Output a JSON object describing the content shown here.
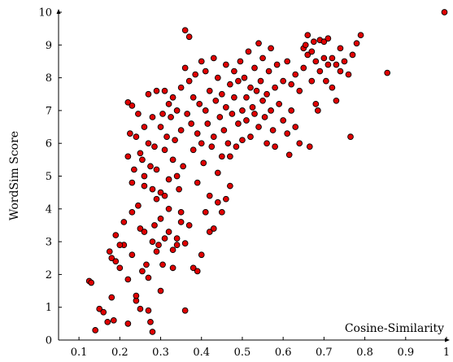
{
  "chart_data": {
    "type": "scatter",
    "title": "",
    "xlabel": "Cosine-Similarity",
    "ylabel": "WordSim Score",
    "xlim": [
      0.05,
      1.0
    ],
    "ylim": [
      0,
      10
    ],
    "grid": false,
    "legend": "none",
    "x_ticks": [
      "0.1",
      "0.2",
      "0.3",
      "0.4",
      "0.5",
      "0.6",
      "0.7",
      "0.8",
      "0.9",
      "1"
    ],
    "y_ticks": [
      "0",
      "1",
      "2",
      "3",
      "4",
      "5",
      "6",
      "7",
      "8",
      "9",
      "10"
    ],
    "marker_color": "#e00000",
    "marker_edge_color": "#000000",
    "series": [
      {
        "points": [
          [
            0.125,
            1.8
          ],
          [
            0.13,
            1.75
          ],
          [
            0.14,
            0.3
          ],
          [
            0.15,
            0.95
          ],
          [
            0.16,
            0.85
          ],
          [
            0.17,
            0.55
          ],
          [
            0.175,
            2.7
          ],
          [
            0.18,
            1.3
          ],
          [
            0.18,
            2.5
          ],
          [
            0.185,
            0.6
          ],
          [
            0.19,
            3.2
          ],
          [
            0.19,
            2.4
          ],
          [
            0.2,
            2.2
          ],
          [
            0.21,
            2.9
          ],
          [
            0.2,
            2.9
          ],
          [
            0.21,
            3.6
          ],
          [
            0.22,
            0.5
          ],
          [
            0.22,
            1.85
          ],
          [
            0.23,
            3.9
          ],
          [
            0.23,
            2.6
          ],
          [
            0.24,
            1.2
          ],
          [
            0.24,
            1.35
          ],
          [
            0.25,
            0.95
          ],
          [
            0.245,
            4.1
          ],
          [
            0.25,
            3.4
          ],
          [
            0.255,
            2.1
          ],
          [
            0.26,
            4.7
          ],
          [
            0.26,
            3.3
          ],
          [
            0.265,
            2.3
          ],
          [
            0.27,
            1.9
          ],
          [
            0.27,
            0.9
          ],
          [
            0.275,
            0.55
          ],
          [
            0.28,
            0.25
          ],
          [
            0.28,
            3.0
          ],
          [
            0.285,
            3.5
          ],
          [
            0.29,
            2.7
          ],
          [
            0.29,
            4.3
          ],
          [
            0.295,
            2.9
          ],
          [
            0.3,
            1.5
          ],
          [
            0.3,
            3.7
          ],
          [
            0.305,
            2.3
          ],
          [
            0.31,
            4.4
          ],
          [
            0.31,
            3.1
          ],
          [
            0.32,
            3.3
          ],
          [
            0.32,
            4.0
          ],
          [
            0.33,
            2.2
          ],
          [
            0.33,
            2.75
          ],
          [
            0.34,
            3.1
          ],
          [
            0.34,
            2.9
          ],
          [
            0.35,
            3.6
          ],
          [
            0.35,
            3.9
          ],
          [
            0.36,
            0.9
          ],
          [
            0.36,
            2.95
          ],
          [
            0.37,
            3.5
          ],
          [
            0.38,
            2.2
          ],
          [
            0.39,
            2.1
          ],
          [
            0.4,
            2.6
          ],
          [
            0.41,
            3.9
          ],
          [
            0.42,
            3.3
          ],
          [
            0.43,
            3.4
          ],
          [
            0.44,
            4.2
          ],
          [
            0.45,
            3.9
          ],
          [
            0.46,
            4.3
          ],
          [
            0.47,
            4.7
          ],
          [
            0.22,
            7.25
          ],
          [
            0.23,
            7.15
          ],
          [
            0.22,
            5.6
          ],
          [
            0.225,
            6.3
          ],
          [
            0.23,
            4.8
          ],
          [
            0.235,
            5.2
          ],
          [
            0.24,
            6.2
          ],
          [
            0.245,
            6.9
          ],
          [
            0.25,
            5.7
          ],
          [
            0.255,
            5.5
          ],
          [
            0.26,
            6.5
          ],
          [
            0.26,
            5.0
          ],
          [
            0.27,
            6.0
          ],
          [
            0.27,
            7.5
          ],
          [
            0.275,
            5.3
          ],
          [
            0.28,
            6.8
          ],
          [
            0.28,
            4.6
          ],
          [
            0.285,
            5.9
          ],
          [
            0.29,
            7.6
          ],
          [
            0.29,
            5.2
          ],
          [
            0.3,
            6.5
          ],
          [
            0.3,
            4.5
          ],
          [
            0.305,
            6.9
          ],
          [
            0.31,
            7.6
          ],
          [
            0.31,
            5.8
          ],
          [
            0.315,
            6.2
          ],
          [
            0.32,
            7.2
          ],
          [
            0.32,
            4.9
          ],
          [
            0.325,
            6.8
          ],
          [
            0.33,
            7.4
          ],
          [
            0.33,
            5.5
          ],
          [
            0.335,
            6.1
          ],
          [
            0.34,
            7.0
          ],
          [
            0.34,
            5.0
          ],
          [
            0.345,
            4.6
          ],
          [
            0.35,
            6.4
          ],
          [
            0.35,
            7.7
          ],
          [
            0.355,
            5.3
          ],
          [
            0.36,
            8.3
          ],
          [
            0.36,
            9.45
          ],
          [
            0.365,
            6.9
          ],
          [
            0.37,
            9.25
          ],
          [
            0.37,
            7.9
          ],
          [
            0.375,
            6.6
          ],
          [
            0.38,
            7.4
          ],
          [
            0.38,
            5.8
          ],
          [
            0.385,
            8.1
          ],
          [
            0.39,
            6.3
          ],
          [
            0.39,
            4.8
          ],
          [
            0.395,
            7.2
          ],
          [
            0.4,
            6.0
          ],
          [
            0.4,
            8.5
          ],
          [
            0.405,
            5.4
          ],
          [
            0.41,
            7.0
          ],
          [
            0.41,
            8.2
          ],
          [
            0.415,
            6.6
          ],
          [
            0.42,
            4.4
          ],
          [
            0.42,
            7.6
          ],
          [
            0.425,
            5.9
          ],
          [
            0.43,
            8.6
          ],
          [
            0.43,
            6.2
          ],
          [
            0.435,
            7.3
          ],
          [
            0.44,
            5.1
          ],
          [
            0.44,
            8.0
          ],
          [
            0.445,
            6.8
          ],
          [
            0.45,
            7.5
          ],
          [
            0.45,
            5.6
          ],
          [
            0.455,
            6.4
          ],
          [
            0.46,
            8.4
          ],
          [
            0.46,
            7.1
          ],
          [
            0.465,
            6.0
          ],
          [
            0.47,
            7.8
          ],
          [
            0.47,
            5.6
          ],
          [
            0.475,
            6.9
          ],
          [
            0.48,
            8.2
          ],
          [
            0.48,
            7.4
          ],
          [
            0.485,
            5.9
          ],
          [
            0.49,
            6.6
          ],
          [
            0.49,
            7.9
          ],
          [
            0.495,
            8.5
          ],
          [
            0.5,
            7.0
          ],
          [
            0.5,
            6.1
          ],
          [
            0.505,
            8.0
          ],
          [
            0.51,
            7.4
          ],
          [
            0.51,
            6.7
          ],
          [
            0.515,
            8.8
          ],
          [
            0.52,
            7.7
          ],
          [
            0.52,
            6.2
          ],
          [
            0.525,
            7.1
          ],
          [
            0.53,
            8.3
          ],
          [
            0.53,
            6.9
          ],
          [
            0.535,
            7.6
          ],
          [
            0.54,
            9.05
          ],
          [
            0.54,
            6.5
          ],
          [
            0.545,
            7.9
          ],
          [
            0.55,
            7.3
          ],
          [
            0.55,
            8.6
          ],
          [
            0.555,
            6.8
          ],
          [
            0.56,
            7.5
          ],
          [
            0.56,
            6.0
          ],
          [
            0.565,
            8.2
          ],
          [
            0.57,
            7.0
          ],
          [
            0.57,
            8.9
          ],
          [
            0.575,
            6.4
          ],
          [
            0.58,
            7.7
          ],
          [
            0.58,
            5.9
          ],
          [
            0.585,
            8.4
          ],
          [
            0.59,
            7.2
          ],
          [
            0.6,
            6.7
          ],
          [
            0.6,
            7.9
          ],
          [
            0.61,
            6.3
          ],
          [
            0.61,
            8.5
          ],
          [
            0.615,
            5.65
          ],
          [
            0.62,
            7.0
          ],
          [
            0.62,
            7.8
          ],
          [
            0.63,
            6.5
          ],
          [
            0.63,
            8.1
          ],
          [
            0.64,
            7.6
          ],
          [
            0.64,
            6.0
          ],
          [
            0.65,
            8.9
          ],
          [
            0.65,
            8.3
          ],
          [
            0.655,
            9.0
          ],
          [
            0.66,
            9.3
          ],
          [
            0.66,
            8.7
          ],
          [
            0.665,
            5.9
          ],
          [
            0.67,
            8.8
          ],
          [
            0.67,
            7.9
          ],
          [
            0.675,
            9.1
          ],
          [
            0.68,
            8.5
          ],
          [
            0.68,
            7.2
          ],
          [
            0.685,
            7.0
          ],
          [
            0.69,
            8.2
          ],
          [
            0.69,
            9.15
          ],
          [
            0.7,
            8.6
          ],
          [
            0.7,
            9.1
          ],
          [
            0.705,
            7.9
          ],
          [
            0.71,
            8.4
          ],
          [
            0.71,
            9.2
          ],
          [
            0.72,
            8.6
          ],
          [
            0.72,
            7.7
          ],
          [
            0.73,
            8.4
          ],
          [
            0.73,
            7.3
          ],
          [
            0.74,
            8.9
          ],
          [
            0.74,
            8.2
          ],
          [
            0.75,
            8.5
          ],
          [
            0.76,
            8.1
          ],
          [
            0.765,
            6.2
          ],
          [
            0.77,
            8.7
          ],
          [
            0.78,
            9.05
          ],
          [
            0.79,
            9.3
          ],
          [
            0.855,
            8.15
          ],
          [
            0.995,
            10.0
          ]
        ]
      }
    ]
  }
}
